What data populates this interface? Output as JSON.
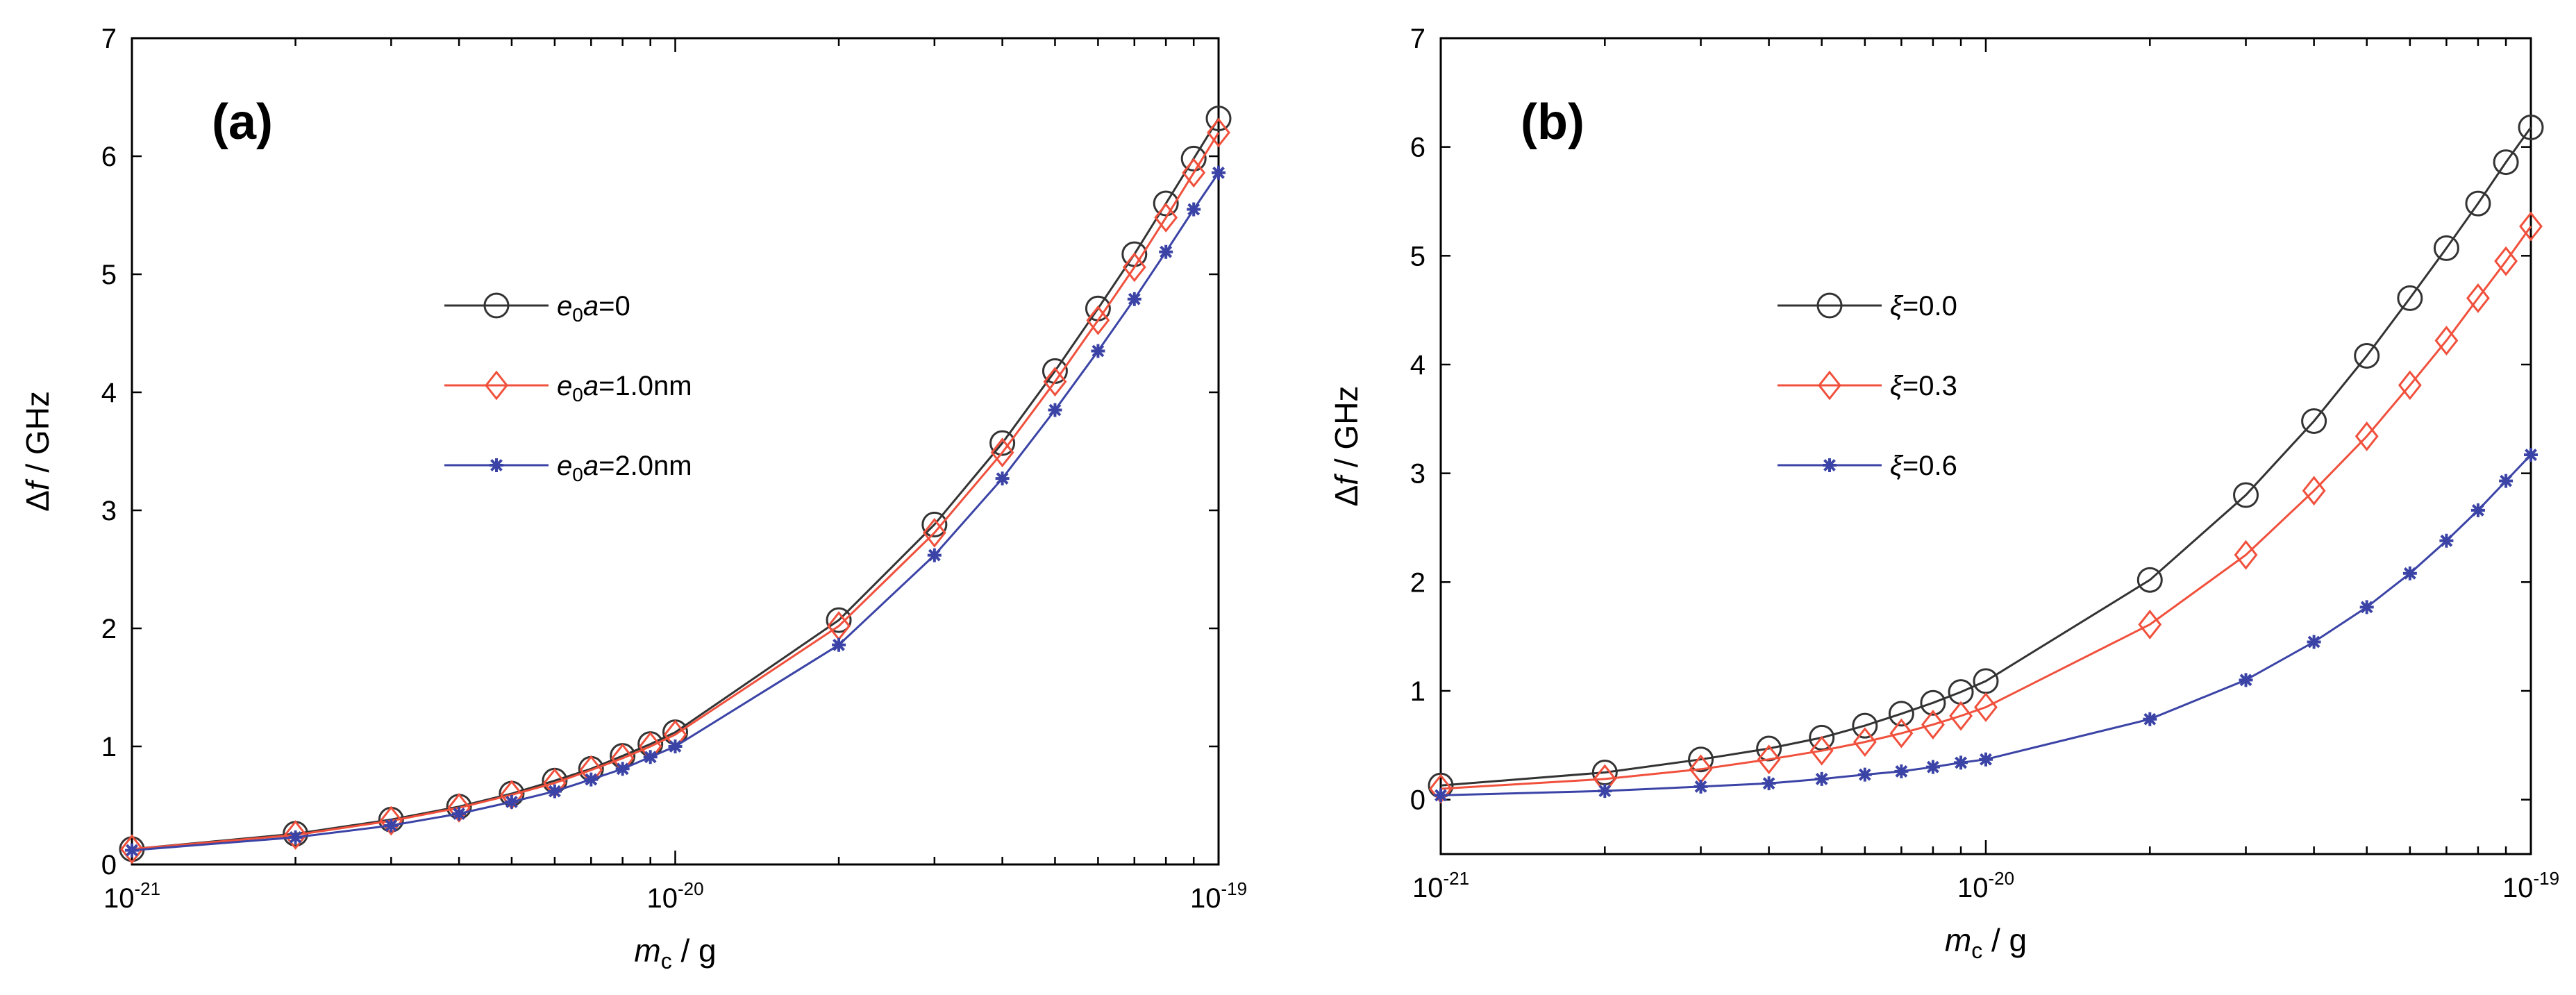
{
  "chart_data": [
    {
      "type": "line",
      "panel_label": "(a)",
      "xscale": "log",
      "xlim": [
        1e-21,
        1e-19
      ],
      "ylim": [
        0,
        7
      ],
      "xtick_labels": [
        {
          "base": "10",
          "exp": "-21"
        },
        {
          "base": "10",
          "exp": "-20"
        },
        {
          "base": "10",
          "exp": "-19"
        }
      ],
      "ytick_labels": [
        "0",
        "1",
        "2",
        "3",
        "4",
        "5",
        "6",
        "7"
      ],
      "xlabel": {
        "main": "m",
        "sub": "c",
        "rest": " / g"
      },
      "ylabel": {
        "delta": "Δ",
        "var": "f",
        "rest": " / GHz"
      },
      "legend_position": "center",
      "x": [
        1e-21,
        2e-21,
        3e-21,
        4e-21,
        5e-21,
        6e-21,
        7e-21,
        8e-21,
        9e-21,
        1e-20,
        2e-20,
        3e-20,
        4e-20,
        5e-20,
        6e-20,
        7e-20,
        8e-20,
        9e-20,
        1e-19
      ],
      "series": [
        {
          "name_var": "e",
          "name_sub": "0",
          "name_var2": "a",
          "name_rest": "=0",
          "color": "#333333",
          "marker": "circle",
          "values": [
            0.13,
            0.26,
            0.38,
            0.49,
            0.6,
            0.71,
            0.81,
            0.92,
            1.02,
            1.12,
            2.07,
            2.88,
            3.57,
            4.18,
            4.71,
            5.17,
            5.6,
            5.98,
            6.32
          ]
        },
        {
          "name_var": "e",
          "name_sub": "0",
          "name_var2": "a",
          "name_rest": "=1.0nm",
          "color": "#f0503c",
          "marker": "diamond",
          "values": [
            0.13,
            0.25,
            0.37,
            0.48,
            0.59,
            0.69,
            0.8,
            0.9,
            1.0,
            1.1,
            2.02,
            2.81,
            3.49,
            4.09,
            4.61,
            5.06,
            5.48,
            5.86,
            6.2
          ]
        },
        {
          "name_var": "e",
          "name_sub": "0",
          "name_var2": "a",
          "name_rest": "=2.0nm",
          "color": "#3b44a6",
          "marker": "star",
          "values": [
            0.12,
            0.23,
            0.33,
            0.43,
            0.53,
            0.62,
            0.72,
            0.81,
            0.91,
            1.0,
            1.86,
            2.62,
            3.27,
            3.85,
            4.35,
            4.79,
            5.19,
            5.55,
            5.86
          ]
        }
      ]
    },
    {
      "type": "line",
      "panel_label": "(b)",
      "xscale": "log",
      "xlim": [
        1e-21,
        1e-19
      ],
      "ylim": [
        -0.5,
        7
      ],
      "xtick_labels": [
        {
          "base": "10",
          "exp": "-21"
        },
        {
          "base": "10",
          "exp": "-20"
        },
        {
          "base": "10",
          "exp": "-19"
        }
      ],
      "ytick_labels": [
        "0",
        "1",
        "2",
        "3",
        "4",
        "5",
        "6",
        "7"
      ],
      "xlabel": {
        "main": "m",
        "sub": "c",
        "rest": " / g"
      },
      "ylabel": {
        "delta": "Δ",
        "var": "f",
        "rest": " / GHz"
      },
      "legend_position": "center-left",
      "x": [
        1e-21,
        2e-21,
        3e-21,
        4e-21,
        5e-21,
        6e-21,
        7e-21,
        8e-21,
        9e-21,
        1e-20,
        2e-20,
        3e-20,
        4e-20,
        5e-20,
        6e-20,
        7e-20,
        8e-20,
        9e-20,
        1e-19
      ],
      "series": [
        {
          "name_var": "ξ",
          "name_rest": "=0.0",
          "color": "#333333",
          "marker": "circle",
          "values": [
            0.13,
            0.25,
            0.37,
            0.47,
            0.57,
            0.68,
            0.79,
            0.89,
            0.99,
            1.09,
            2.02,
            2.8,
            3.48,
            4.08,
            4.61,
            5.07,
            5.48,
            5.86,
            6.18
          ]
        },
        {
          "name_var": "ξ",
          "name_rest": "=0.3",
          "color": "#f0503c",
          "marker": "diamond",
          "values": [
            0.1,
            0.19,
            0.28,
            0.37,
            0.45,
            0.53,
            0.61,
            0.69,
            0.77,
            0.85,
            1.61,
            2.25,
            2.84,
            3.34,
            3.81,
            4.22,
            4.61,
            4.95,
            5.27
          ]
        },
        {
          "name_var": "ξ",
          "name_rest": "=0.6",
          "color": "#3b44a6",
          "marker": "star",
          "values": [
            0.04,
            0.08,
            0.12,
            0.15,
            0.19,
            0.23,
            0.26,
            0.3,
            0.34,
            0.37,
            0.74,
            1.1,
            1.45,
            1.77,
            2.08,
            2.38,
            2.66,
            2.93,
            3.17
          ]
        }
      ]
    }
  ]
}
